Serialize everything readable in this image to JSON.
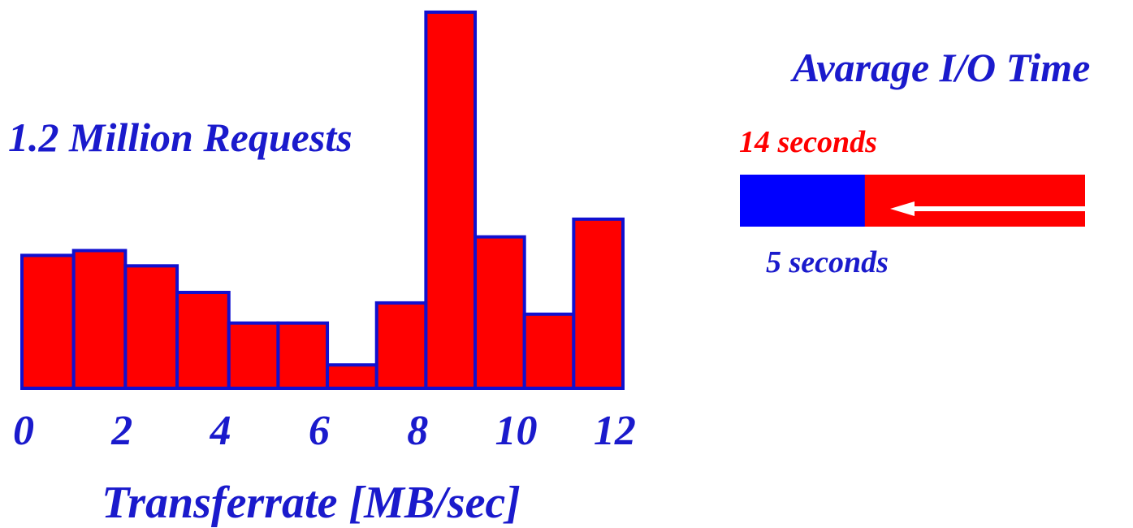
{
  "colors": {
    "bar_fill": "#ff0000",
    "bar_stroke": "#1010d0",
    "blue_text": "#1a1acc",
    "red_text": "#ff0000",
    "io_old": "#ff0000",
    "io_new": "#0000ff",
    "arrow": "#ffffff"
  },
  "chart_data": [
    {
      "type": "bar",
      "title": "1.2 Million Requests",
      "xlabel": "Transferrate [MB/sec]",
      "ylabel": "",
      "bin_edges": [
        0,
        1.05,
        2.1,
        3.15,
        4.2,
        5.2,
        6.2,
        7.2,
        8.2,
        9.2,
        10.2,
        11.2,
        12.2
      ],
      "values": [
        165,
        171,
        152,
        119,
        81,
        81,
        29,
        106,
        467,
        188,
        92,
        210
      ],
      "value_note": "",
      "x_ticks": [
        "0",
        "2",
        "4",
        "6",
        "8",
        "10",
        "12"
      ],
      "x_tick_values": [
        0,
        2,
        4,
        6,
        8,
        10,
        12
      ],
      "xlim": [
        0,
        12.2
      ],
      "ylim": [
        0,
        470
      ],
      "grid": false,
      "legend": "none"
    },
    {
      "type": "bar",
      "title": "Avarage I/O Time",
      "orientation": "horizontal",
      "categories": [
        "14 seconds",
        "5 seconds"
      ],
      "values": [
        14,
        5
      ],
      "unit": "seconds",
      "xlim": [
        0,
        14
      ],
      "grid": false,
      "legend": "none"
    }
  ],
  "labels": {
    "requests": "1.2 Million Requests",
    "xlabel": "Transferrate [MB/sec]",
    "io_title": "Avarage I/O Time",
    "io_old": "14 seconds",
    "io_new": "5 seconds"
  }
}
